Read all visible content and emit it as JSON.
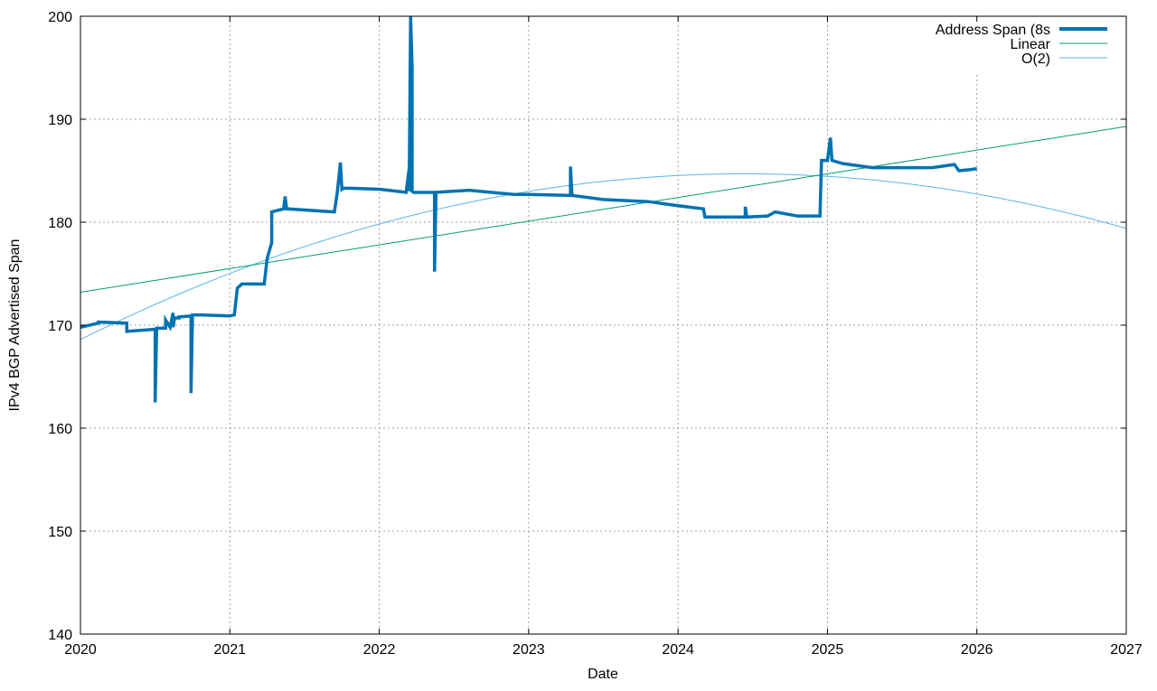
{
  "chart_data": {
    "type": "line",
    "title": "",
    "xlabel": "Date",
    "ylabel": "IPv4 BGP Advertised Span",
    "xlim": [
      2020,
      2027
    ],
    "ylim": [
      140,
      200
    ],
    "xticks": [
      "2020",
      "2021",
      "2022",
      "2023",
      "2024",
      "2025",
      "2026",
      "2027"
    ],
    "yticks": [
      "140",
      "150",
      "160",
      "170",
      "180",
      "190",
      "200"
    ],
    "grid": true,
    "legend_position": "top-right",
    "colors": {
      "span": "#0072b2",
      "linear": "#009e73",
      "quadratic": "#56b4e9"
    },
    "series": [
      {
        "name": "Address Span (8s",
        "x": [
          2020.0,
          2020.12,
          2020.12,
          2020.31,
          2020.31,
          2020.5,
          2020.5,
          2020.51,
          2020.51,
          2020.57,
          2020.57,
          2020.6,
          2020.62,
          2020.62,
          2020.63,
          2020.66,
          2020.66,
          2020.74,
          2020.74,
          2020.75,
          2020.8,
          2021.0,
          2021.03,
          2021.05,
          2021.08,
          2021.23,
          2021.25,
          2021.28,
          2021.28,
          2021.36,
          2021.37,
          2021.38,
          2021.7,
          2021.72,
          2021.74,
          2021.75,
          2021.76,
          2021.8,
          2022.0,
          2022.12,
          2022.18,
          2022.2,
          2022.2,
          2022.21,
          2022.22,
          2022.22,
          2022.23,
          2022.3,
          2022.37,
          2022.37,
          2022.38,
          2022.6,
          2022.9,
          2023.0,
          2023.28,
          2023.28,
          2023.29,
          2023.5,
          2023.8,
          2024.0,
          2024.17,
          2024.18,
          2024.45,
          2024.45,
          2024.46,
          2024.6,
          2024.65,
          2024.8,
          2024.95,
          2024.96,
          2024.97,
          2025.0,
          2025.02,
          2025.03,
          2025.1,
          2025.3,
          2025.5,
          2025.7,
          2025.85,
          2025.88,
          2025.95,
          2026.0
        ],
        "y": [
          169.8,
          170.2,
          170.3,
          170.2,
          169.4,
          169.6,
          162.5,
          169.6,
          169.7,
          169.7,
          170.5,
          169.8,
          171.2,
          169.8,
          170.7,
          170.7,
          170.8,
          170.9,
          163.4,
          171.0,
          171.0,
          170.9,
          171.0,
          173.6,
          174.0,
          174.0,
          176.5,
          178.0,
          181.0,
          181.3,
          182.5,
          181.3,
          181.0,
          183.0,
          185.8,
          183.2,
          183.3,
          183.3,
          183.2,
          183.0,
          182.9,
          185.2,
          183.0,
          200.0,
          195.0,
          183.0,
          182.9,
          182.9,
          182.9,
          175.2,
          182.9,
          183.1,
          182.7,
          182.7,
          182.6,
          185.4,
          182.6,
          182.2,
          182.0,
          181.6,
          181.3,
          180.5,
          180.5,
          181.5,
          180.5,
          180.6,
          181.0,
          180.6,
          180.6,
          186.0,
          186.0,
          186.0,
          188.2,
          186.0,
          185.7,
          185.3,
          185.3,
          185.3,
          185.6,
          185.0,
          185.1,
          185.2
        ]
      },
      {
        "name": "Linear",
        "fit": "linear",
        "x": [
          2020,
          2027
        ],
        "y": [
          173.2,
          189.3
        ]
      },
      {
        "name": "O(2)",
        "fit": "quadratic",
        "coefficients": {
          "c": 168.6,
          "b": 7.24,
          "a": -0.814,
          "origin": 2020
        }
      }
    ]
  }
}
